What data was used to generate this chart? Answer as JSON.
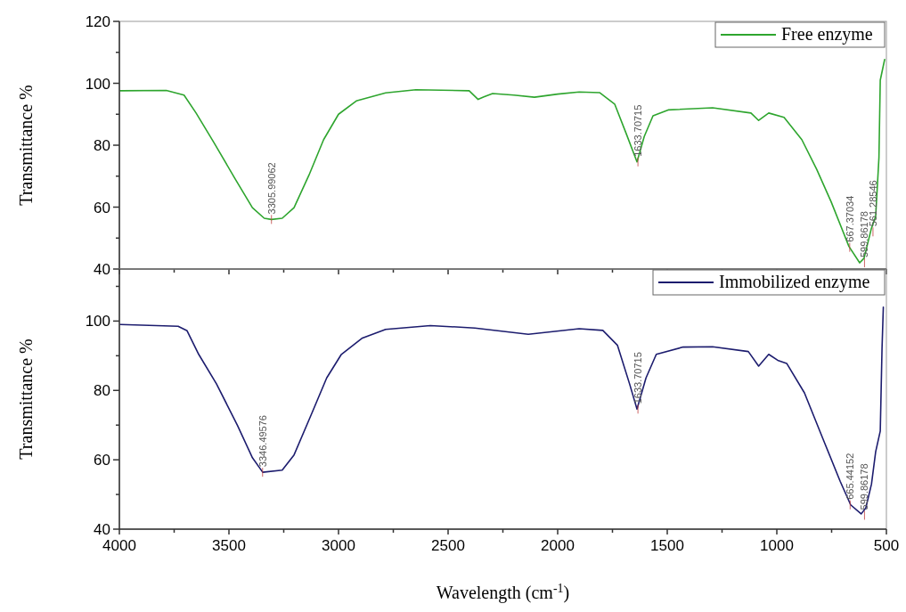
{
  "chart_data": [
    {
      "type": "line",
      "ylabel": "Transmittance %",
      "xlim": [
        4000,
        500
      ],
      "ylim": [
        40,
        120
      ],
      "xticks": [
        4000,
        {
          "value": 3750,
          "label": null
        },
        3500,
        {
          "value": 3250,
          "label": null
        },
        3000,
        {
          "value": 2750,
          "label": null
        },
        2500,
        {
          "value": 2250,
          "label": null
        },
        2000,
        {
          "value": 1750,
          "label": null
        },
        1500,
        {
          "value": 1250,
          "label": null
        },
        1000,
        {
          "value": 750,
          "label": null
        },
        500
      ],
      "yticks": [
        40,
        {
          "value": 50,
          "label": null
        },
        60,
        {
          "value": 70,
          "label": null
        },
        80,
        {
          "value": 90,
          "label": null
        },
        100,
        {
          "value": 110,
          "label": null
        },
        120
      ],
      "tick_labels": "y",
      "legend": "top right",
      "series": [
        {
          "name": "Free enzyme",
          "color": "#2ea52e",
          "x": [
            3996,
            3786,
            3705,
            3650,
            3569,
            3474,
            3393,
            3339,
            3306,
            3257,
            3203,
            3135,
            3068,
            3000,
            2919,
            2785,
            2647,
            2404,
            2363,
            2337,
            2297,
            2200,
            2106,
            2000,
            1902,
            1809,
            1740,
            1687,
            1638,
            1605,
            1565,
            1496,
            1293,
            1118,
            1083,
            1037,
            967,
            886,
            818,
            752,
            671,
            622,
            602,
            569,
            549,
            534,
            528,
            508
          ],
          "values": [
            97.6,
            97.7,
            96.2,
            90.4,
            80.9,
            69.4,
            59.8,
            56.4,
            56,
            56.4,
            59.8,
            70.3,
            81.8,
            90,
            94.3,
            96.9,
            97.9,
            97.6,
            94.8,
            95.6,
            96.7,
            96.2,
            95.5,
            96.5,
            97.2,
            97,
            93.3,
            83.7,
            74.6,
            82.8,
            89.5,
            91.4,
            92.1,
            90.4,
            88,
            90.4,
            89,
            81.8,
            72.2,
            61.7,
            47.3,
            42,
            43.5,
            53,
            57,
            76,
            101,
            107.7
          ]
        }
      ],
      "annotations": [
        {
          "text": "3305.99062",
          "x": 3305.99062,
          "y": 56
        },
        {
          "text": "1633.70715",
          "x": 1633.70715,
          "y": 74.6
        },
        {
          "text": "667.37034",
          "x": 667.37034,
          "y": 47
        },
        {
          "text": "599.86178",
          "x": 599.86178,
          "y": 42
        },
        {
          "text": "561.28546",
          "x": 561.28546,
          "y": 52
        }
      ]
    },
    {
      "type": "line",
      "ylabel": "Transmittance %",
      "xlabel": "Wavelength (cm$^{-1}$)",
      "xlim": [
        4000,
        500
      ],
      "ylim": [
        40,
        115
      ],
      "xticks": [
        4000,
        {
          "value": 3750,
          "label": null
        },
        3500,
        {
          "value": 3250,
          "label": null
        },
        3000,
        {
          "value": 2750,
          "label": null
        },
        2500,
        {
          "value": 2250,
          "label": null
        },
        2000,
        {
          "value": 1750,
          "label": null
        },
        1500,
        {
          "value": 1250,
          "label": null
        },
        1000,
        {
          "value": 750,
          "label": null
        },
        500
      ],
      "yticks": [
        40,
        {
          "value": 50,
          "label": null
        },
        60,
        {
          "value": 70,
          "label": null
        },
        80,
        {
          "value": 90,
          "label": null
        },
        100,
        {
          "value": 110,
          "label": null
        }
      ],
      "legend": "top right",
      "series": [
        {
          "name": "Immobilized enzyme",
          "color": "#1c1c6e",
          "x": [
            3996,
            3732,
            3691,
            3638,
            3557,
            3461,
            3393,
            3346,
            3257,
            3203,
            3122,
            3054,
            2987,
            2891,
            2785,
            2581,
            2378,
            2134,
            1902,
            1794,
            1727,
            1672,
            1638,
            1597,
            1550,
            1428,
            1293,
            1130,
            1083,
            1037,
            996,
            955,
            874,
            793,
            711,
            663,
            615,
            594,
            568,
            549,
            528,
            520,
            514
          ],
          "values": [
            99,
            98.5,
            97.2,
            90.4,
            81.9,
            69.9,
            60.6,
            56.4,
            57,
            61.4,
            73.4,
            83.6,
            90.4,
            95.1,
            97.6,
            98.7,
            98,
            96.2,
            97.8,
            97.3,
            93,
            81.9,
            74.6,
            83.6,
            90.4,
            92.5,
            92.6,
            91.2,
            87,
            90.4,
            88.7,
            87.8,
            79.3,
            66.6,
            53.8,
            47,
            44.4,
            46.1,
            53,
            62.3,
            68.3,
            92,
            104
          ]
        }
      ],
      "annotations": [
        {
          "text": "3346.49576",
          "x": 3346.49576,
          "y": 56.4
        },
        {
          "text": "1633.70715",
          "x": 1633.70715,
          "y": 74.6
        },
        {
          "text": "665.44152",
          "x": 665.44152,
          "y": 47
        },
        {
          "text": "599.86178",
          "x": 599.86178,
          "y": 44
        }
      ]
    }
  ]
}
